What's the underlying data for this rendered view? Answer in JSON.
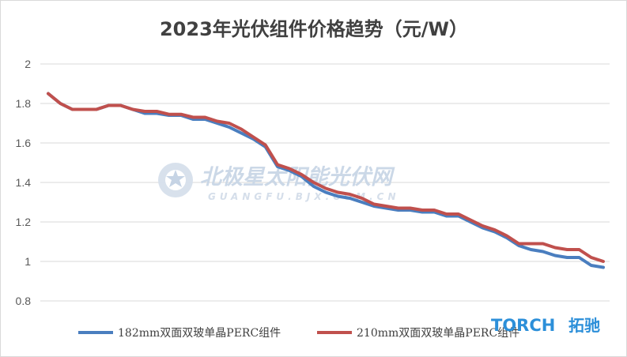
{
  "chart_data": {
    "type": "line",
    "title": "2023年光伏组件价格趋势（元/W）",
    "xlabel": "",
    "ylabel": "",
    "ylim": [
      0.8,
      2.0
    ],
    "yticks": [
      "2",
      "1.8",
      "1.6",
      "1.4",
      "1.2",
      "1",
      "0.8"
    ],
    "grid": true,
    "legend_position": "bottom",
    "series": [
      {
        "name": "182mm双面双玻单晶PERC组件",
        "color": "#4a7ebf",
        "values": [
          1.85,
          1.8,
          1.77,
          1.77,
          1.77,
          1.79,
          1.79,
          1.77,
          1.75,
          1.75,
          1.74,
          1.74,
          1.72,
          1.72,
          1.7,
          1.68,
          1.65,
          1.62,
          1.58,
          1.48,
          1.46,
          1.43,
          1.38,
          1.35,
          1.33,
          1.32,
          1.3,
          1.28,
          1.27,
          1.26,
          1.26,
          1.25,
          1.25,
          1.23,
          1.23,
          1.2,
          1.17,
          1.15,
          1.12,
          1.08,
          1.06,
          1.05,
          1.03,
          1.02,
          1.02,
          0.98,
          0.97
        ]
      },
      {
        "name": "210mm双面双玻单晶PERC组件",
        "color": "#c0504d",
        "values": [
          1.85,
          1.8,
          1.77,
          1.77,
          1.77,
          1.79,
          1.79,
          1.77,
          1.76,
          1.76,
          1.745,
          1.745,
          1.73,
          1.73,
          1.71,
          1.7,
          1.67,
          1.63,
          1.59,
          1.49,
          1.47,
          1.44,
          1.4,
          1.37,
          1.35,
          1.34,
          1.32,
          1.29,
          1.28,
          1.27,
          1.27,
          1.26,
          1.26,
          1.24,
          1.24,
          1.21,
          1.18,
          1.16,
          1.13,
          1.09,
          1.09,
          1.09,
          1.07,
          1.06,
          1.06,
          1.02,
          1.0
        ]
      }
    ]
  },
  "watermark": {
    "main": "北极星太阳能光伏网",
    "sub": "GUANGFU.BJX.COM.CN"
  },
  "brand": {
    "latin": "TORCH",
    "cjk": "拓驰"
  }
}
